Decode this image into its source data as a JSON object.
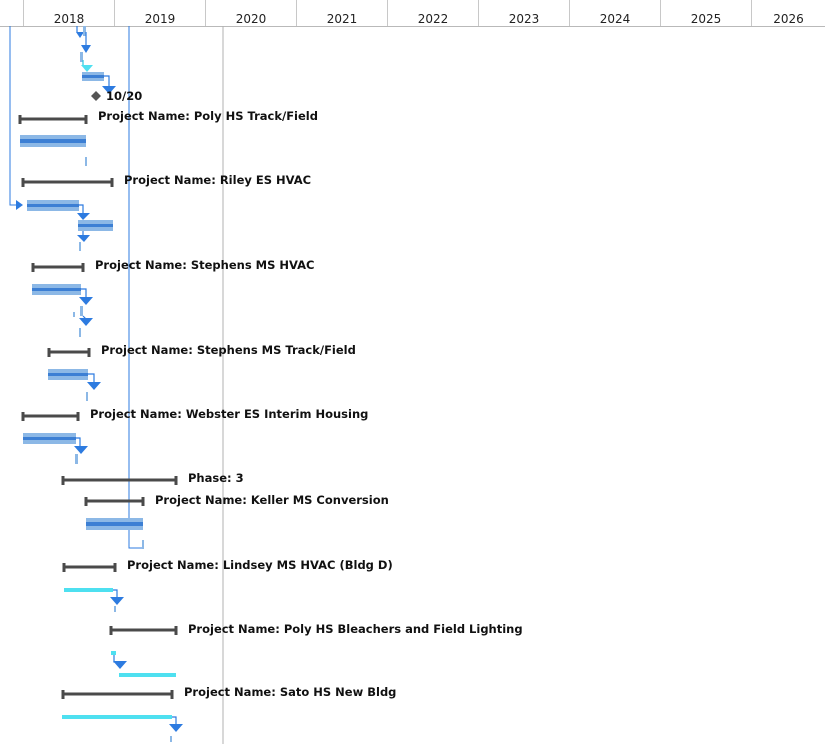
{
  "timescale": {
    "years": [
      "2018",
      "2019",
      "2020",
      "2021",
      "2022",
      "2023",
      "2024",
      "2025",
      "2026"
    ]
  },
  "milestone": {
    "label": "10/20"
  },
  "tasks": [
    {
      "label": "Project Name: Poly HS Track/Field"
    },
    {
      "label": "Project Name: Riley ES HVAC"
    },
    {
      "label": "Project Name: Stephens MS HVAC"
    },
    {
      "label": "Project Name: Stephens MS Track/Field"
    },
    {
      "label": "Project Name: Webster ES Interim Housing"
    },
    {
      "label": "Phase: 3"
    },
    {
      "label": "Project Name: Keller MS Conversion"
    },
    {
      "label": "Project Name: Lindsey MS HVAC (Bldg D)"
    },
    {
      "label": "Project Name: Poly HS Bleachers and Field Lighting"
    },
    {
      "label": "Project Name: Sato HS New Bldg"
    }
  ],
  "colors": {
    "summary_bar": "#4a4a4a",
    "task_bar": "#8cb8e6",
    "task_bar_core": "#3c7fd4",
    "critical_bar": "#4ee0f0",
    "link_arrow": "#2d7be0",
    "status_line": "#b0b0b0"
  }
}
